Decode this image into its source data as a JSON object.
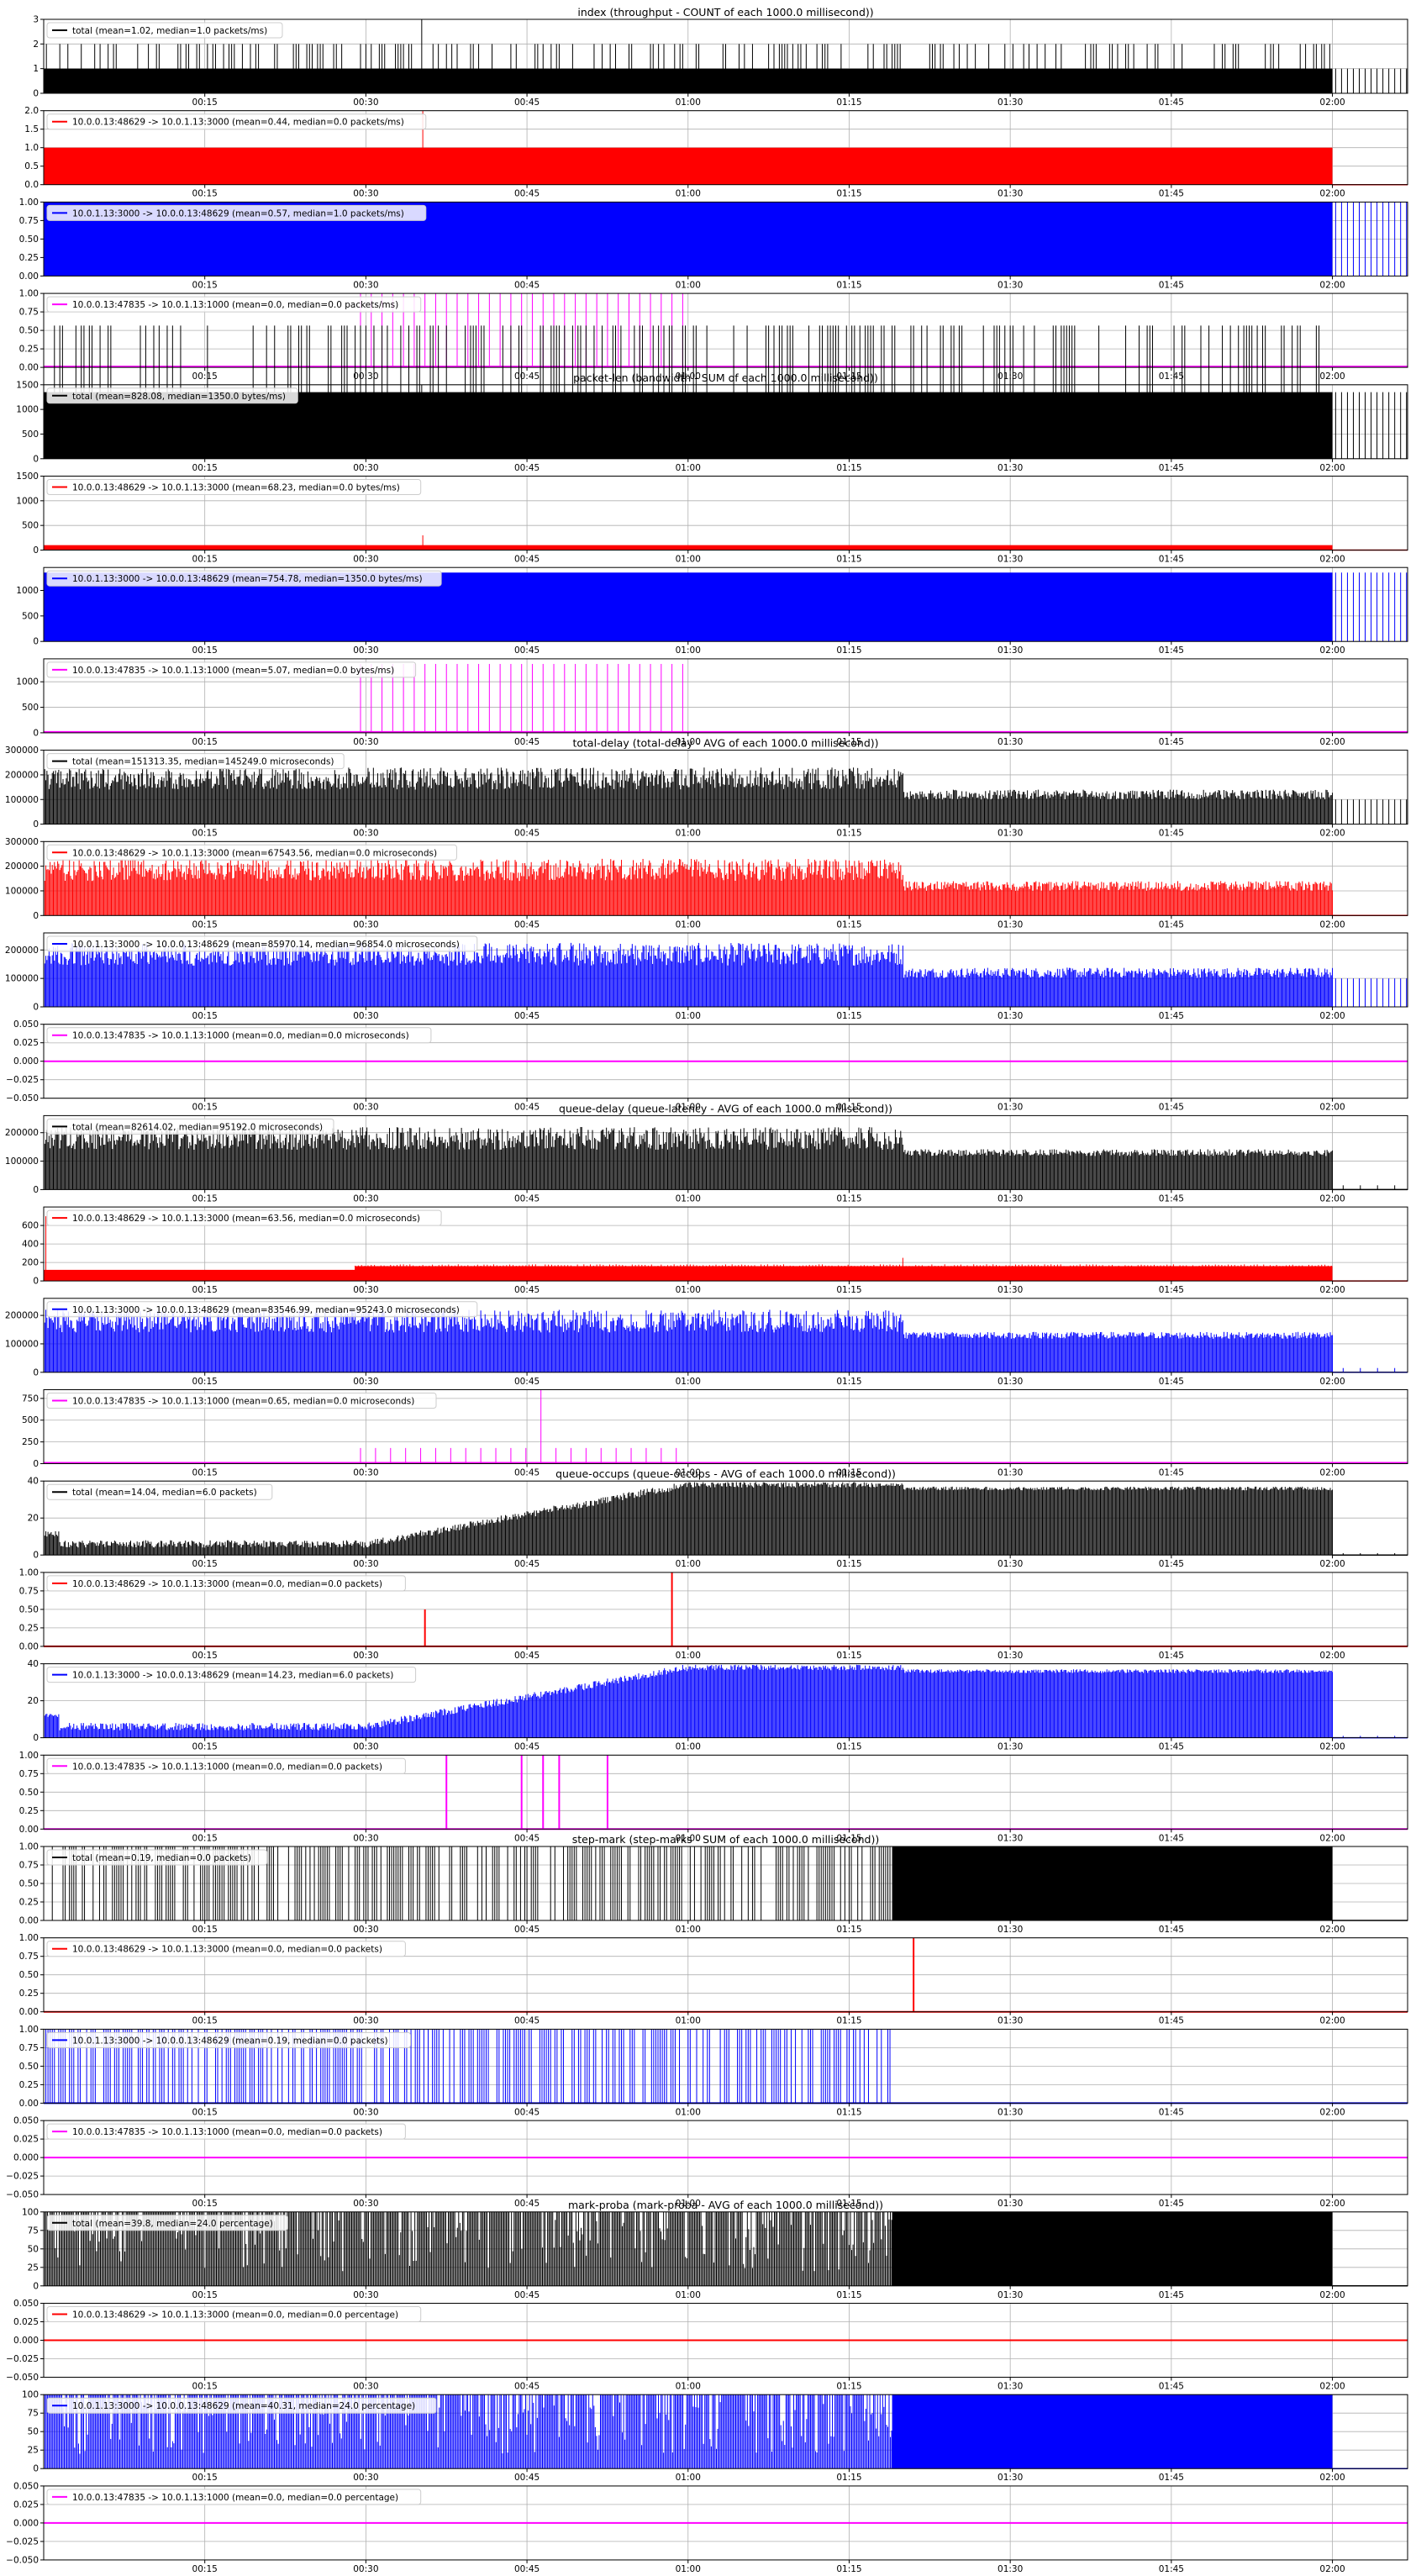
{
  "x_ticks": [
    "00:15",
    "00:30",
    "00:45",
    "01:00",
    "01:15",
    "01:30",
    "01:45",
    "02:00"
  ],
  "colors": {
    "total": "#000000",
    "flow1": "#ff0000",
    "flow2": "#0000ff",
    "flow3": "#ff00ff",
    "grid": "#b0b0b0"
  },
  "chart_data": [
    {
      "type": "bar",
      "group": "index",
      "title": "index (throughput - COUNT of each 1000.0 millisecond))",
      "legend": "total (mean=1.02, median=1.0 packets/ms)",
      "color": "#000000",
      "ylim": [
        0,
        3
      ],
      "yticks": [
        "0",
        "1",
        "2",
        "3"
      ],
      "grid": true,
      "pattern": "spikes",
      "base": 1.0,
      "peak": 3.0,
      "end_pattern": "stripes",
      "end_value": 1.0
    },
    {
      "type": "area",
      "group": "index",
      "title": "",
      "legend": "10.0.0.13:48629 -> 10.0.1.13:3000 (mean=0.44, median=0.0 packets/ms)",
      "color": "#ff0000",
      "ylim": [
        0,
        2.0
      ],
      "yticks": [
        "0.0",
        "0.5",
        "1.0",
        "1.5",
        "2.0"
      ],
      "grid": true,
      "pattern": "flat",
      "base": 1.0,
      "peak": 2.0
    },
    {
      "type": "area",
      "group": "index",
      "title": "",
      "legend": "10.0.1.13:3000 -> 10.0.0.13:48629 (mean=0.57, median=1.0 packets/ms)",
      "color": "#0000ff",
      "ylim": [
        0,
        1.0
      ],
      "yticks": [
        "0.00",
        "0.25",
        "0.50",
        "0.75",
        "1.00"
      ],
      "grid": true,
      "pattern": "flat",
      "base": 1.0,
      "end_pattern": "stripes",
      "end_value": 1.0
    },
    {
      "type": "bar",
      "group": "index",
      "title": "",
      "legend": "10.0.0.13:47835 -> 10.0.1.13:1000 (mean=0.0, median=0.0 packets/ms)",
      "color": "#ff00ff",
      "ylim": [
        0,
        1.0
      ],
      "yticks": [
        "0.00",
        "0.25",
        "0.50",
        "0.75",
        "1.00"
      ],
      "grid": true,
      "pattern": "pulses",
      "base": 1.0,
      "pulse_range": [
        29.5,
        60
      ],
      "pulse_step": 1.0
    },
    {
      "type": "bar",
      "group": "packet-len",
      "title": "packet-len (bandwidth - SUM of each 1000.0 millisecond))",
      "legend": "total (mean=828.08, median=1350.0 bytes/ms)",
      "color": "#000000",
      "ylim": [
        0,
        1500
      ],
      "yticks": [
        "0",
        "500",
        "1000",
        "1500"
      ],
      "grid": true,
      "pattern": "spikes",
      "base": 1350,
      "peak": 1500,
      "end_pattern": "stripes",
      "end_value": 1350
    },
    {
      "type": "area",
      "group": "packet-len",
      "title": "",
      "legend": "10.0.0.13:48629 -> 10.0.1.13:3000 (mean=68.23, median=0.0 bytes/ms)",
      "color": "#ff0000",
      "ylim": [
        0,
        1500
      ],
      "yticks": [
        "0",
        "500",
        "1000",
        "1500"
      ],
      "grid": true,
      "pattern": "flat",
      "base": 100,
      "peak": 1500
    },
    {
      "type": "area",
      "group": "packet-len",
      "title": "",
      "legend": "10.0.1.13:3000 -> 10.0.0.13:48629 (mean=754.78, median=1350.0 bytes/ms)",
      "color": "#0000ff",
      "ylim": [
        0,
        1450
      ],
      "yticks": [
        "0",
        "500",
        "1000"
      ],
      "grid": true,
      "pattern": "flat",
      "base": 1350,
      "end_pattern": "stripes",
      "end_value": 1350
    },
    {
      "type": "bar",
      "group": "packet-len",
      "title": "",
      "legend": "10.0.0.13:47835 -> 10.0.1.13:1000 (mean=5.07, median=0.0 bytes/ms)",
      "color": "#ff00ff",
      "ylim": [
        0,
        1450
      ],
      "yticks": [
        "0",
        "500",
        "1000"
      ],
      "grid": true,
      "pattern": "pulses",
      "base": 1350,
      "pulse_range": [
        29.5,
        60
      ],
      "pulse_step": 1.0
    },
    {
      "type": "bar",
      "group": "total-delay",
      "title": "total-delay (total-delay - AVG of each 1000.0 millisecond))",
      "legend": "total (mean=151313.35, median=145249.0 microseconds)",
      "color": "#000000",
      "ylim": [
        0,
        300000
      ],
      "yticks": [
        "0",
        "100000",
        "200000",
        "300000"
      ],
      "grid": true,
      "pattern": "noisy",
      "base": 185000,
      "amp": 45000,
      "late_base": 120000,
      "late_amp": 20000,
      "change": 80,
      "end_pattern": "stripes",
      "end_value": 100000
    },
    {
      "type": "bar",
      "group": "total-delay",
      "title": "",
      "legend": "10.0.0.13:48629 -> 10.0.1.13:3000 (mean=67543.56, median=0.0 microseconds)",
      "color": "#ff0000",
      "ylim": [
        0,
        300000
      ],
      "yticks": [
        "0",
        "100000",
        "200000",
        "300000"
      ],
      "grid": true,
      "pattern": "noisy",
      "base": 185000,
      "amp": 45000,
      "late_base": 120000,
      "late_amp": 20000,
      "change": 80
    },
    {
      "type": "bar",
      "group": "total-delay",
      "title": "",
      "legend": "10.0.1.13:3000 -> 10.0.0.13:48629 (mean=85970.14, median=96854.0 microseconds)",
      "color": "#0000ff",
      "ylim": [
        0,
        260000
      ],
      "yticks": [
        "0",
        "100000",
        "200000"
      ],
      "grid": true,
      "pattern": "noisy",
      "base": 185000,
      "amp": 40000,
      "late_base": 120000,
      "late_amp": 18000,
      "change": 80,
      "end_pattern": "stripes",
      "end_value": 100000
    },
    {
      "type": "line",
      "group": "total-delay",
      "title": "",
      "legend": "10.0.0.13:47835 -> 10.0.1.13:1000 (mean=0.0, median=0.0 microseconds)",
      "color": "#ff00ff",
      "ylim": [
        -0.05,
        0.05
      ],
      "yticks": [
        "−0.050",
        "−0.025",
        "0.000",
        "0.025",
        "0.050"
      ],
      "grid": true,
      "pattern": "zero"
    },
    {
      "type": "bar",
      "group": "queue-delay",
      "title": "queue-delay (queue-latency - AVG of each 1000.0 millisecond))",
      "legend": "total (mean=82614.02, median=95192.0 microseconds)",
      "color": "#000000",
      "ylim": [
        0,
        260000
      ],
      "yticks": [
        "0",
        "100000",
        "200000"
      ],
      "grid": true,
      "pattern": "noisy",
      "base": 180000,
      "amp": 40000,
      "late_base": 130000,
      "late_amp": 12000,
      "change": 80,
      "end_pattern": "sparse",
      "end_value": 15000
    },
    {
      "type": "bar",
      "group": "queue-delay",
      "title": "",
      "legend": "10.0.0.13:48629 -> 10.0.1.13:3000 (mean=63.56, median=0.0 microseconds)",
      "color": "#ff0000",
      "ylim": [
        0,
        800
      ],
      "yticks": [
        "0",
        "200",
        "400",
        "600"
      ],
      "grid": true,
      "pattern": "flat_step",
      "base": 120,
      "late_base": 160,
      "change": 29,
      "peak": 700
    },
    {
      "type": "bar",
      "group": "queue-delay",
      "title": "",
      "legend": "10.0.1.13:3000 -> 10.0.0.13:48629 (mean=83546.99, median=95243.0 microseconds)",
      "color": "#0000ff",
      "ylim": [
        0,
        260000
      ],
      "yticks": [
        "0",
        "100000",
        "200000"
      ],
      "grid": true,
      "pattern": "noisy",
      "base": 180000,
      "amp": 40000,
      "late_base": 130000,
      "late_amp": 12000,
      "change": 80,
      "end_pattern": "sparse",
      "end_value": 15000
    },
    {
      "type": "bar",
      "group": "queue-delay",
      "title": "",
      "legend": "10.0.0.13:47835 -> 10.0.1.13:1000 (mean=0.65, median=0.0 microseconds)",
      "color": "#ff00ff",
      "ylim": [
        0,
        850
      ],
      "yticks": [
        "0",
        "250",
        "500",
        "750"
      ],
      "grid": true,
      "pattern": "pulses",
      "base": 180,
      "peak": 850,
      "pulse_range": [
        29.5,
        60
      ],
      "pulse_step": 1.4
    },
    {
      "type": "bar",
      "group": "queue-occups",
      "title": "queue-occups (queue-occups - AVG of each 1000.0 millisecond))",
      "legend": "total (mean=14.04, median=6.0 packets)",
      "color": "#000000",
      "ylim": [
        0,
        40
      ],
      "yticks": [
        "0",
        "20",
        "40"
      ],
      "grid": true,
      "pattern": "ramp",
      "end_pattern": "sparse",
      "end_value": 1
    },
    {
      "type": "line",
      "group": "queue-occups",
      "title": "",
      "legend": "10.0.0.13:48629 -> 10.0.1.13:3000 (mean=0.0, median=0.0 packets)",
      "color": "#ff0000",
      "ylim": [
        0,
        1.0
      ],
      "yticks": [
        "0.00",
        "0.25",
        "0.50",
        "0.75",
        "1.00"
      ],
      "grid": true,
      "pattern": "impulses",
      "impulses": [
        [
          35.5,
          0.5
        ],
        [
          58.5,
          1.0
        ]
      ]
    },
    {
      "type": "bar",
      "group": "queue-occups",
      "title": "",
      "legend": "10.0.1.13:3000 -> 10.0.0.13:48629 (mean=14.23, median=6.0 packets)",
      "color": "#0000ff",
      "ylim": [
        0,
        40
      ],
      "yticks": [
        "0",
        "20",
        "40"
      ],
      "grid": true,
      "pattern": "ramp",
      "end_pattern": "sparse",
      "end_value": 1
    },
    {
      "type": "line",
      "group": "queue-occups",
      "title": "",
      "legend": "10.0.0.13:47835 -> 10.0.1.13:1000 (mean=0.0, median=0.0 packets)",
      "color": "#ff00ff",
      "ylim": [
        0,
        1.0
      ],
      "yticks": [
        "0.00",
        "0.25",
        "0.50",
        "0.75",
        "1.00"
      ],
      "grid": true,
      "pattern": "impulses",
      "impulses": [
        [
          37.5,
          1.0
        ],
        [
          44.5,
          1.0
        ],
        [
          46.5,
          1.0
        ],
        [
          48,
          1.0
        ],
        [
          52.5,
          1.0
        ]
      ]
    },
    {
      "type": "bar",
      "group": "step-mark",
      "title": "step-mark (step-marks - SUM of each 1000.0 millisecond))",
      "legend": "total (mean=0.19, median=0.0 packets)",
      "color": "#000000",
      "ylim": [
        0,
        1.0
      ],
      "yticks": [
        "0.00",
        "0.25",
        "0.50",
        "0.75",
        "1.00"
      ],
      "grid": true,
      "pattern": "dense_stripes",
      "fill_start": 79,
      "fill_end": 120
    },
    {
      "type": "line",
      "group": "step-mark",
      "title": "",
      "legend": "10.0.0.13:48629 -> 10.0.1.13:3000 (mean=0.0, median=0.0 packets)",
      "color": "#ff0000",
      "ylim": [
        0,
        1.0
      ],
      "yticks": [
        "0.00",
        "0.25",
        "0.50",
        "0.75",
        "1.00"
      ],
      "grid": true,
      "pattern": "impulses",
      "impulses": [
        [
          81,
          1.0
        ]
      ]
    },
    {
      "type": "bar",
      "group": "step-mark",
      "title": "",
      "legend": "10.0.1.13:3000 -> 10.0.0.13:48629 (mean=0.19, median=0.0 packets)",
      "color": "#0000ff",
      "ylim": [
        0,
        1.0
      ],
      "yticks": [
        "0.00",
        "0.25",
        "0.50",
        "0.75",
        "1.00"
      ],
      "grid": true,
      "pattern": "dense_stripes"
    },
    {
      "type": "line",
      "group": "step-mark",
      "title": "",
      "legend": "10.0.0.13:47835 -> 10.0.1.13:1000 (mean=0.0, median=0.0 packets)",
      "color": "#ff00ff",
      "ylim": [
        -0.05,
        0.05
      ],
      "yticks": [
        "−0.050",
        "−0.025",
        "0.000",
        "0.025",
        "0.050"
      ],
      "grid": true,
      "pattern": "zero"
    },
    {
      "type": "area",
      "group": "mark-proba",
      "title": "mark-proba (mark-proba - AVG of each 1000.0 millisecond))",
      "legend": "total (mean=39.8, median=24.0 percentage)",
      "color": "#000000",
      "ylim": [
        0,
        100
      ],
      "yticks": [
        "0",
        "25",
        "50",
        "75",
        "100"
      ],
      "grid": true,
      "pattern": "dips",
      "fill_start": 79,
      "fill_end": 120
    },
    {
      "type": "line",
      "group": "mark-proba",
      "title": "",
      "legend": "10.0.0.13:48629 -> 10.0.1.13:3000 (mean=0.0, median=0.0 percentage)",
      "color": "#ff0000",
      "ylim": [
        -0.05,
        0.05
      ],
      "yticks": [
        "−0.050",
        "−0.025",
        "0.000",
        "0.025",
        "0.050"
      ],
      "grid": true,
      "pattern": "zero"
    },
    {
      "type": "area",
      "group": "mark-proba",
      "title": "",
      "legend": "10.0.1.13:3000 -> 10.0.0.13:48629 (mean=40.31, median=24.0 percentage)",
      "color": "#0000ff",
      "ylim": [
        0,
        100
      ],
      "yticks": [
        "0",
        "25",
        "50",
        "75",
        "100"
      ],
      "grid": true,
      "pattern": "dips",
      "fill_start": 79,
      "fill_end": 120
    },
    {
      "type": "line",
      "group": "mark-proba",
      "title": "",
      "legend": "10.0.0.13:47835 -> 10.0.1.13:1000 (mean=0.0, median=0.0 percentage)",
      "color": "#ff00ff",
      "ylim": [
        -0.05,
        0.05
      ],
      "yticks": [
        "−0.050",
        "−0.025",
        "0.000",
        "0.025",
        "0.050"
      ],
      "grid": true,
      "pattern": "zero"
    }
  ]
}
